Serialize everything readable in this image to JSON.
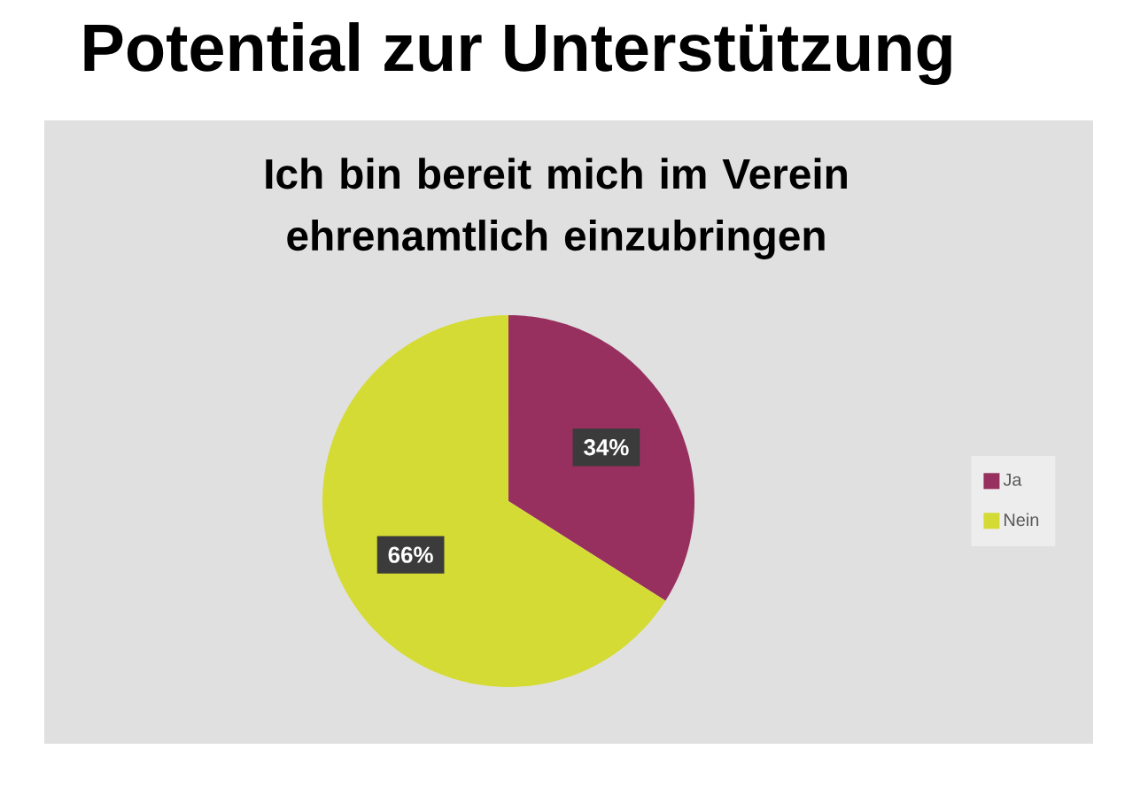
{
  "chart_data": {
    "type": "pie",
    "title": "Potential zur Unterstützung",
    "subtitle": "Ich bin bereit mich im Verein ehrenamtlich einzubringen",
    "categories": [
      "Ja",
      "Nein"
    ],
    "values": [
      34,
      66
    ],
    "colors": [
      "#98305f",
      "#d5db35"
    ],
    "value_labels": [
      "34%",
      "66%"
    ],
    "legend": "right"
  }
}
